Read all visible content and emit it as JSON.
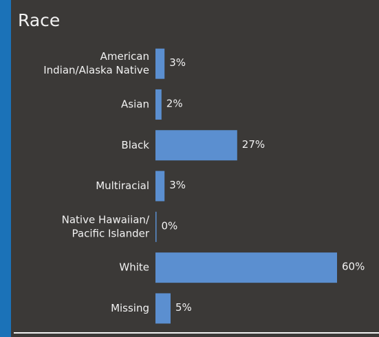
{
  "chart_data": {
    "type": "bar",
    "orientation": "horizontal",
    "title": "Race",
    "categories": [
      [
        "American",
        "Indian/Alaska Native"
      ],
      [
        "Asian"
      ],
      [
        "Black"
      ],
      [
        "Multiracial"
      ],
      [
        "Native Hawaiian/",
        "Pacific Islander"
      ],
      [
        "White"
      ],
      [
        "Missing"
      ]
    ],
    "values": [
      3,
      2,
      27,
      3,
      0,
      60,
      5
    ],
    "value_labels": [
      "3%",
      "2%",
      "27%",
      "3%",
      "0%",
      "60%",
      "5%"
    ],
    "color": "#5b8fd0"
  }
}
